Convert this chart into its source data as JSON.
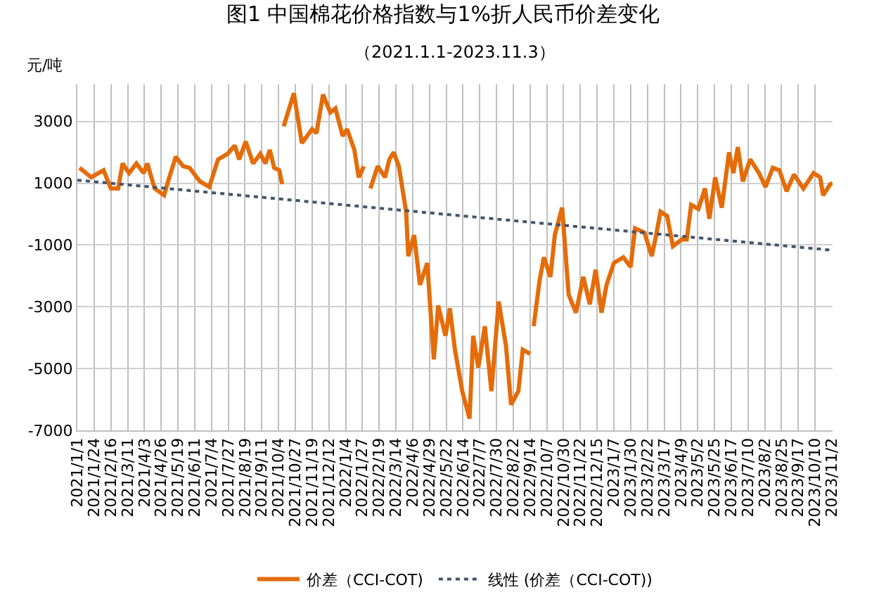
{
  "chart_data": {
    "type": "line",
    "title": "图1 中国棉花价格指数与1%折人民币价差变化",
    "subtitle": "（2021.1.1-2023.11.3）",
    "ylabel": "元/吨",
    "x": [
      "2021-01-04",
      "2021-01-20",
      "2021-02-06",
      "2021-02-16",
      "2021-02-26",
      "2021-03-04",
      "2021-03-13",
      "2021-03-23",
      "2021-04-02",
      "2021-04-07",
      "2021-04-17",
      "2021-04-30",
      "2021-05-06",
      "2021-05-16",
      "2021-05-26",
      "2021-06-04",
      "2021-06-18",
      "2021-07-01",
      "2021-07-13",
      "2021-07-26",
      "2021-08-05",
      "2021-08-11",
      "2021-08-20",
      "2021-08-30",
      "2021-09-09",
      "2021-09-16",
      "2021-09-22",
      "2021-09-28",
      "2021-10-05",
      "2021-10-09",
      "2021-10-10",
      "2021-10-11",
      "2021-10-25",
      "2021-11-05",
      "2021-11-19",
      "2021-11-25",
      "2021-12-04",
      "2021-12-14",
      "2021-12-21",
      "2021-12-31",
      "2022-01-06",
      "2022-01-16",
      "2022-01-22",
      "2022-01-29",
      "2022-02-02",
      "2022-02-07",
      "2022-02-17",
      "2022-02-27",
      "2022-03-05",
      "2022-03-11",
      "2022-03-18",
      "2022-03-28",
      "2022-03-31",
      "2022-04-08",
      "2022-04-16",
      "2022-04-26",
      "2022-05-05",
      "2022-05-11",
      "2022-05-21",
      "2022-05-27",
      "2022-06-03",
      "2022-06-13",
      "2022-06-23",
      "2022-06-28",
      "2022-07-05",
      "2022-07-14",
      "2022-07-23",
      "2022-08-02",
      "2022-08-12",
      "2022-08-19",
      "2022-08-29",
      "2022-09-04",
      "2022-09-14",
      "2022-09-16",
      "2022-09-19",
      "2022-09-27",
      "2022-10-03",
      "2022-10-12",
      "2022-10-18",
      "2022-10-28",
      "2022-11-06",
      "2022-11-16",
      "2022-11-26",
      "2022-12-05",
      "2022-12-13",
      "2022-12-21",
      "2022-12-28",
      "2023-01-07",
      "2023-01-20",
      "2023-01-30",
      "2023-02-05",
      "2023-02-18",
      "2023-02-28",
      "2023-03-06",
      "2023-03-12",
      "2023-03-21",
      "2023-03-29",
      "2023-04-10",
      "2023-04-17",
      "2023-04-23",
      "2023-05-03",
      "2023-05-12",
      "2023-05-18",
      "2023-05-26",
      "2023-06-04",
      "2023-06-14",
      "2023-06-20",
      "2023-06-26",
      "2023-07-03",
      "2023-07-13",
      "2023-07-25",
      "2023-08-03",
      "2023-08-13",
      "2023-08-22",
      "2023-09-01",
      "2023-09-11",
      "2023-09-24",
      "2023-10-08",
      "2023-10-17",
      "2023-10-21",
      "2023-10-31",
      "2023-11-03"
    ],
    "series": [
      {
        "name": "价差（CCI-COT)",
        "color": "#e46c0a",
        "line_style": "solid",
        "values": [
          1500,
          1190,
          1420,
          830,
          830,
          1640,
          1330,
          1640,
          1330,
          1640,
          830,
          610,
          1100,
          1860,
          1550,
          1500,
          1060,
          880,
          1770,
          1950,
          2220,
          1770,
          2350,
          1640,
          1950,
          1640,
          2080,
          1500,
          1420,
          970,
          null,
          2840,
          3910,
          2300,
          2750,
          2620,
          3870,
          3290,
          3420,
          2530,
          2750,
          2080,
          1190,
          1550,
          null,
          830,
          1550,
          1190,
          1770,
          2000,
          1550,
          80,
          -1360,
          -680,
          -2290,
          -1580,
          -4700,
          -2960,
          -3940,
          -3050,
          -4390,
          -5730,
          -6620,
          -3940,
          -4970,
          -3630,
          -5730,
          -2830,
          -4260,
          -6170,
          -5730,
          -4390,
          -4520,
          null,
          -3630,
          -2160,
          -1400,
          -2030,
          -680,
          210,
          -2610,
          -3190,
          -2030,
          -2920,
          -1800,
          -3190,
          -2290,
          -1580,
          -1400,
          -1710,
          -460,
          -600,
          -1360,
          -680,
          80,
          -60,
          -1040,
          -820,
          -820,
          300,
          170,
          830,
          -150,
          1190,
          210,
          2000,
          1330,
          2170,
          1060,
          1770,
          1330,
          880,
          1500,
          1420,
          740,
          1280,
          830,
          1330,
          1190,
          610,
          970,
          1000
        ]
      },
      {
        "name": "线性 (价差（CCI-COT))",
        "color": "#44546a",
        "line_style": "dotted",
        "type": "line",
        "x": [
          "2021-01-01",
          "2023-11-03"
        ],
        "values": [
          1100,
          -1170
        ]
      }
    ],
    "xlim": [
      "2021-01-01",
      "2023-11-03"
    ],
    "xticks": [
      {
        "value": "2021-01-01",
        "label": "2021/1/1"
      },
      {
        "value": "2021-01-24",
        "label": "2021/1/24"
      },
      {
        "value": "2021-02-16",
        "label": "2021/2/16"
      },
      {
        "value": "2021-03-11",
        "label": "2021/3/11"
      },
      {
        "value": "2021-04-03",
        "label": "2021/4/3"
      },
      {
        "value": "2021-04-26",
        "label": "2021/4/26"
      },
      {
        "value": "2021-05-19",
        "label": "2021/5/19"
      },
      {
        "value": "2021-06-11",
        "label": "2021/6/11"
      },
      {
        "value": "2021-07-04",
        "label": "2021/7/4"
      },
      {
        "value": "2021-07-27",
        "label": "2021/7/27"
      },
      {
        "value": "2021-08-19",
        "label": "2021/8/19"
      },
      {
        "value": "2021-09-11",
        "label": "2021/9/11"
      },
      {
        "value": "2021-10-04",
        "label": "2021/10/4"
      },
      {
        "value": "2021-10-27",
        "label": "2021/10/27"
      },
      {
        "value": "2021-11-19",
        "label": "2021/11/19"
      },
      {
        "value": "2021-12-12",
        "label": "2021/12/12"
      },
      {
        "value": "2022-01-04",
        "label": "2022/1/4"
      },
      {
        "value": "2022-01-27",
        "label": "2022/1/27"
      },
      {
        "value": "2022-02-19",
        "label": "2022/2/19"
      },
      {
        "value": "2022-03-14",
        "label": "2022/3/14"
      },
      {
        "value": "2022-04-06",
        "label": "2022/4/6"
      },
      {
        "value": "2022-04-29",
        "label": "2022/4/29"
      },
      {
        "value": "2022-05-22",
        "label": "2022/5/22"
      },
      {
        "value": "2022-06-14",
        "label": "2022/6/14"
      },
      {
        "value": "2022-07-07",
        "label": "2022/7/7"
      },
      {
        "value": "2022-07-30",
        "label": "2022/7/30"
      },
      {
        "value": "2022-08-22",
        "label": "2022/8/22"
      },
      {
        "value": "2022-09-14",
        "label": "2022/9/14"
      },
      {
        "value": "2022-10-07",
        "label": "2022/10/7"
      },
      {
        "value": "2022-10-30",
        "label": "2022/10/30"
      },
      {
        "value": "2022-11-22",
        "label": "2022/11/22"
      },
      {
        "value": "2022-12-15",
        "label": "2022/12/15"
      },
      {
        "value": "2023-01-07",
        "label": "2023/1/7"
      },
      {
        "value": "2023-01-30",
        "label": "2023/1/30"
      },
      {
        "value": "2023-02-22",
        "label": "2023/2/22"
      },
      {
        "value": "2023-03-17",
        "label": "2023/3/17"
      },
      {
        "value": "2023-04-09",
        "label": "2023/4/9"
      },
      {
        "value": "2023-05-02",
        "label": "2023/5/2"
      },
      {
        "value": "2023-05-25",
        "label": "2023/5/25"
      },
      {
        "value": "2023-06-17",
        "label": "2023/6/17"
      },
      {
        "value": "2023-07-10",
        "label": "2023/7/10"
      },
      {
        "value": "2023-08-02",
        "label": "2023/8/2"
      },
      {
        "value": "2023-08-25",
        "label": "2023/8/25"
      },
      {
        "value": "2023-09-17",
        "label": "2023/9/17"
      },
      {
        "value": "2023-10-10",
        "label": "2023/10/10"
      },
      {
        "value": "2023-11-02",
        "label": "2023/11/2"
      }
    ],
    "ylim": [
      -7000,
      4200
    ],
    "yticks": [
      -7000,
      -5000,
      -3000,
      -1000,
      1000,
      3000
    ],
    "grid": true,
    "legend": "bottom",
    "marker": "none"
  }
}
